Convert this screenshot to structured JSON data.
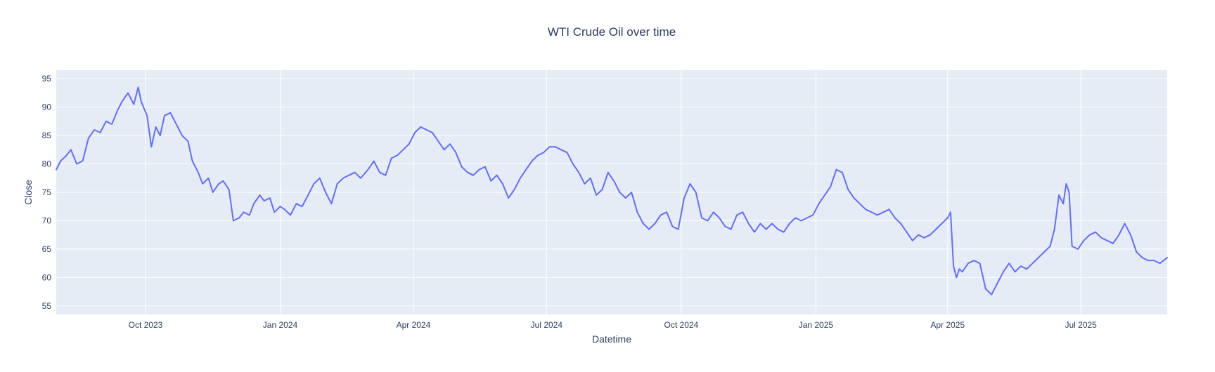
{
  "chart_data": {
    "type": "line",
    "title": "WTI Crude Oil over time",
    "xlabel": "Datetime",
    "ylabel": "Close",
    "x_axis_type": "date",
    "xlim": [
      "2023-08-01",
      "2025-08-29"
    ],
    "ylim": [
      53.5,
      96.5
    ],
    "grid": true,
    "legend": "none",
    "colors": {
      "line": "#636efa",
      "plot_background": "#e5ecf6",
      "grid": "#ffffff",
      "text": "#2a3f5f"
    },
    "x_ticks": [
      {
        "date": "2023-10-01",
        "label": "Oct 2023"
      },
      {
        "date": "2024-01-01",
        "label": "Jan 2024"
      },
      {
        "date": "2024-04-01",
        "label": "Apr 2024"
      },
      {
        "date": "2024-07-01",
        "label": "Jul 2024"
      },
      {
        "date": "2024-10-01",
        "label": "Oct 2024"
      },
      {
        "date": "2025-01-01",
        "label": "Jan 2025"
      },
      {
        "date": "2025-04-01",
        "label": "Apr 2025"
      },
      {
        "date": "2025-07-01",
        "label": "Jul 2025"
      }
    ],
    "y_ticks": [
      {
        "value": 55,
        "label": "55"
      },
      {
        "value": 60,
        "label": "60"
      },
      {
        "value": 65,
        "label": "65"
      },
      {
        "value": 70,
        "label": "70"
      },
      {
        "value": 75,
        "label": "75"
      },
      {
        "value": 80,
        "label": "80"
      },
      {
        "value": 85,
        "label": "85"
      },
      {
        "value": 90,
        "label": "90"
      },
      {
        "value": 95,
        "label": "95"
      }
    ],
    "series": [
      {
        "x": [
          "2023-08-01",
          "2023-08-04",
          "2023-08-08",
          "2023-08-11",
          "2023-08-15",
          "2023-08-19",
          "2023-08-23",
          "2023-08-27",
          "2023-08-31",
          "2023-09-04",
          "2023-09-08",
          "2023-09-12",
          "2023-09-15",
          "2023-09-19",
          "2023-09-23",
          "2023-09-26",
          "2023-09-28",
          "2023-10-02",
          "2023-10-05",
          "2023-10-08",
          "2023-10-11",
          "2023-10-14",
          "2023-10-18",
          "2023-10-22",
          "2023-10-26",
          "2023-10-30",
          "2023-11-02",
          "2023-11-06",
          "2023-11-09",
          "2023-11-13",
          "2023-11-16",
          "2023-11-20",
          "2023-11-23",
          "2023-11-27",
          "2023-11-30",
          "2023-12-04",
          "2023-12-07",
          "2023-12-11",
          "2023-12-14",
          "2023-12-18",
          "2023-12-21",
          "2023-12-25",
          "2023-12-28",
          "2024-01-01",
          "2024-01-04",
          "2024-01-08",
          "2024-01-12",
          "2024-01-16",
          "2024-01-20",
          "2024-01-24",
          "2024-01-28",
          "2024-02-01",
          "2024-02-05",
          "2024-02-09",
          "2024-02-13",
          "2024-02-17",
          "2024-02-21",
          "2024-02-25",
          "2024-03-01",
          "2024-03-05",
          "2024-03-09",
          "2024-03-13",
          "2024-03-17",
          "2024-03-21",
          "2024-03-25",
          "2024-03-29",
          "2024-04-02",
          "2024-04-06",
          "2024-04-10",
          "2024-04-14",
          "2024-04-18",
          "2024-04-22",
          "2024-04-26",
          "2024-04-30",
          "2024-05-04",
          "2024-05-08",
          "2024-05-12",
          "2024-05-16",
          "2024-05-20",
          "2024-05-24",
          "2024-05-28",
          "2024-06-01",
          "2024-06-05",
          "2024-06-09",
          "2024-06-13",
          "2024-06-17",
          "2024-06-21",
          "2024-06-25",
          "2024-06-29",
          "2024-07-03",
          "2024-07-07",
          "2024-07-11",
          "2024-07-15",
          "2024-07-19",
          "2024-07-23",
          "2024-07-27",
          "2024-07-31",
          "2024-08-04",
          "2024-08-08",
          "2024-08-12",
          "2024-08-16",
          "2024-08-20",
          "2024-08-24",
          "2024-08-28",
          "2024-09-01",
          "2024-09-05",
          "2024-09-09",
          "2024-09-13",
          "2024-09-17",
          "2024-09-21",
          "2024-09-25",
          "2024-09-29",
          "2024-10-03",
          "2024-10-07",
          "2024-10-11",
          "2024-10-15",
          "2024-10-19",
          "2024-10-23",
          "2024-10-27",
          "2024-10-31",
          "2024-11-04",
          "2024-11-08",
          "2024-11-12",
          "2024-11-16",
          "2024-11-20",
          "2024-11-24",
          "2024-11-28",
          "2024-12-02",
          "2024-12-06",
          "2024-12-10",
          "2024-12-14",
          "2024-12-18",
          "2024-12-22",
          "2024-12-26",
          "2024-12-30",
          "2025-01-03",
          "2025-01-07",
          "2025-01-11",
          "2025-01-15",
          "2025-01-19",
          "2025-01-23",
          "2025-01-27",
          "2025-01-31",
          "2025-02-04",
          "2025-02-08",
          "2025-02-12",
          "2025-02-16",
          "2025-02-20",
          "2025-02-24",
          "2025-02-28",
          "2025-03-04",
          "2025-03-08",
          "2025-03-12",
          "2025-03-16",
          "2025-03-20",
          "2025-03-24",
          "2025-03-28",
          "2025-04-01",
          "2025-04-03",
          "2025-04-05",
          "2025-04-07",
          "2025-04-09",
          "2025-04-11",
          "2025-04-15",
          "2025-04-19",
          "2025-04-23",
          "2025-04-27",
          "2025-05-01",
          "2025-05-05",
          "2025-05-09",
          "2025-05-13",
          "2025-05-17",
          "2025-05-21",
          "2025-05-25",
          "2025-05-29",
          "2025-06-02",
          "2025-06-06",
          "2025-06-10",
          "2025-06-13",
          "2025-06-16",
          "2025-06-19",
          "2025-06-21",
          "2025-06-23",
          "2025-06-25",
          "2025-06-29",
          "2025-07-03",
          "2025-07-07",
          "2025-07-11",
          "2025-07-15",
          "2025-07-19",
          "2025-07-23",
          "2025-07-27",
          "2025-07-31",
          "2025-08-04",
          "2025-08-08",
          "2025-08-12",
          "2025-08-16",
          "2025-08-20",
          "2025-08-24",
          "2025-08-29"
        ],
        "y": [
          79.0,
          80.5,
          81.5,
          82.5,
          80.0,
          80.5,
          84.5,
          86.0,
          85.5,
          87.5,
          87.0,
          89.5,
          91.0,
          92.5,
          90.5,
          93.5,
          91.0,
          88.5,
          83.0,
          86.5,
          85.0,
          88.5,
          89.0,
          87.0,
          85.0,
          84.0,
          80.5,
          78.5,
          76.5,
          77.5,
          75.0,
          76.5,
          77.0,
          75.5,
          70.0,
          70.5,
          71.5,
          71.0,
          73.0,
          74.5,
          73.5,
          74.0,
          71.5,
          72.5,
          72.0,
          71.0,
          73.0,
          72.5,
          74.5,
          76.5,
          77.5,
          75.0,
          73.0,
          76.5,
          77.5,
          78.0,
          78.5,
          77.5,
          79.0,
          80.5,
          78.5,
          78.0,
          81.0,
          81.5,
          82.5,
          83.5,
          85.5,
          86.5,
          86.0,
          85.5,
          84.0,
          82.5,
          83.5,
          82.0,
          79.5,
          78.5,
          78.0,
          79.0,
          79.5,
          77.0,
          78.0,
          76.5,
          74.0,
          75.5,
          77.5,
          79.0,
          80.5,
          81.5,
          82.0,
          83.0,
          83.0,
          82.5,
          82.0,
          80.0,
          78.5,
          76.5,
          77.5,
          74.5,
          75.5,
          78.5,
          77.0,
          75.0,
          74.0,
          75.0,
          71.5,
          69.5,
          68.5,
          69.5,
          71.0,
          71.5,
          69.0,
          68.5,
          74.0,
          76.5,
          75.0,
          70.5,
          70.0,
          71.5,
          70.5,
          69.0,
          68.5,
          71.0,
          71.5,
          69.5,
          68.0,
          69.5,
          68.5,
          69.5,
          68.5,
          68.0,
          69.5,
          70.5,
          70.0,
          70.5,
          71.0,
          73.0,
          74.5,
          76.0,
          79.0,
          78.5,
          75.5,
          74.0,
          73.0,
          72.0,
          71.5,
          71.0,
          71.5,
          72.0,
          70.5,
          69.5,
          68.0,
          66.5,
          67.5,
          67.0,
          67.5,
          68.5,
          69.5,
          70.5,
          71.5,
          62.0,
          60.0,
          61.5,
          61.0,
          62.5,
          63.0,
          62.5,
          58.0,
          57.0,
          59.0,
          61.0,
          62.5,
          61.0,
          62.0,
          61.5,
          62.5,
          63.5,
          64.5,
          65.5,
          68.5,
          74.5,
          73.0,
          76.5,
          75.0,
          65.5,
          65.0,
          66.5,
          67.5,
          68.0,
          67.0,
          66.5,
          66.0,
          67.5,
          69.5,
          67.5,
          64.5,
          63.5,
          63.0,
          63.0,
          62.5,
          63.5
        ]
      }
    ]
  }
}
